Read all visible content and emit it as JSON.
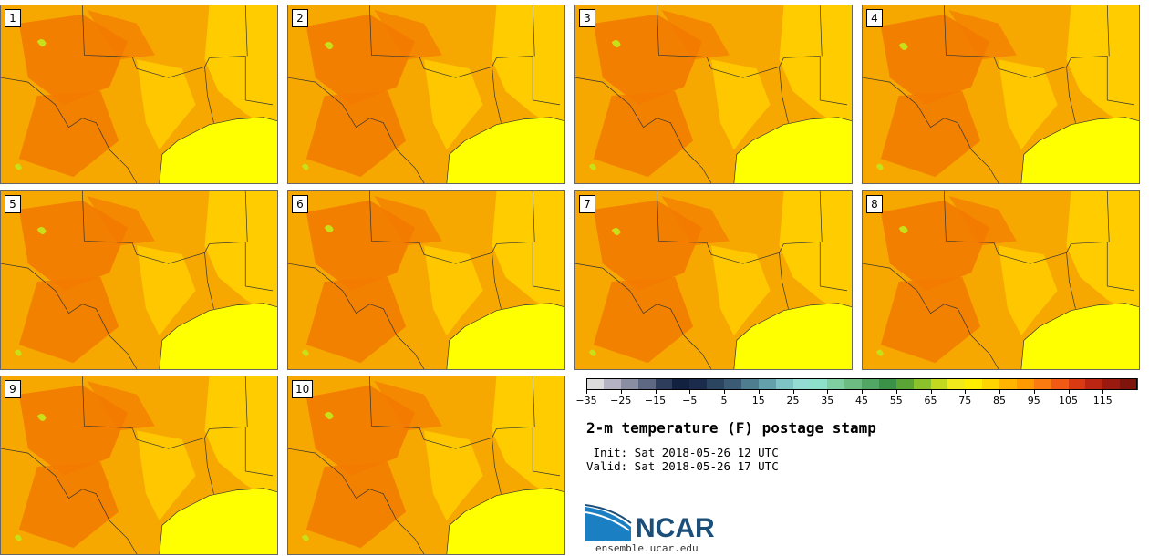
{
  "panels": [
    {
      "label": "1"
    },
    {
      "label": "2"
    },
    {
      "label": "3"
    },
    {
      "label": "4"
    },
    {
      "label": "5"
    },
    {
      "label": "6"
    },
    {
      "label": "7"
    },
    {
      "label": "8"
    },
    {
      "label": "9"
    },
    {
      "label": "10"
    }
  ],
  "colorbar": {
    "colors": [
      "#dcdcdc",
      "#b3b3c3",
      "#8a8ea3",
      "#5e6883",
      "#2f3d5c",
      "#12213f",
      "#1b2b4b",
      "#2b4560",
      "#3a5b73",
      "#4e7d8f",
      "#63a0ab",
      "#7ec4c5",
      "#94dbd4",
      "#8de0c9",
      "#7fcfa0",
      "#6dbd83",
      "#52a765",
      "#3b9148",
      "#5aa536",
      "#8bc22b",
      "#c3d91f",
      "#f2ea1b",
      "#ffee00",
      "#ffd400",
      "#ffb400",
      "#ff9a00",
      "#fb7b10",
      "#f05a14",
      "#d93a12",
      "#bb2612",
      "#9b1a10",
      "#7e150d"
    ],
    "ticks": [
      "−35",
      "−25",
      "−15",
      "−5",
      "5",
      "15",
      "25",
      "35",
      "45",
      "55",
      "65",
      "75",
      "85",
      "95",
      "105",
      "115"
    ]
  },
  "title": "2-m temperature (F) postage stamp",
  "init": " Init: Sat 2018-05-26 12 UTC",
  "valid": "Valid: Sat 2018-05-26 17 UTC",
  "logo": {
    "text": "NCAR",
    "url": "ensemble.ucar.edu",
    "color": "#1b4f7a"
  },
  "map_colors": {
    "hot": "#f27a00",
    "warm": "#f7a800",
    "mild": "#ffcc00",
    "gulf": "#ffff00",
    "cool": "#c8e01a"
  }
}
